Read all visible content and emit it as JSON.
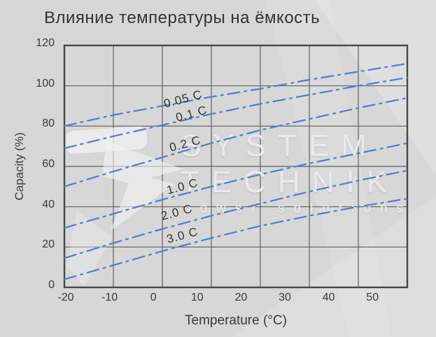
{
  "title": "Влияние температуры на ёмкость",
  "watermark": {
    "line1": "SYSTEM",
    "line2": "TECHNIK",
    "line3": "power solutions"
  },
  "colors": {
    "background": "#d7d7d7",
    "curve_blue": "#4b7fd2",
    "grid": "#606060",
    "border": "#474747",
    "text": "#333333",
    "watermark": "#ececec"
  },
  "chart_data": {
    "type": "line",
    "title": "Влияние температуры на ёмкость",
    "xlabel": "Temperature (°C)",
    "ylabel": "Capacity (%)",
    "xlim": [
      -20,
      50
    ],
    "ylim": [
      0,
      120
    ],
    "grid": true,
    "line_style": "dash-dot",
    "line_color": "#4b7fd2",
    "x": [
      -20,
      -10,
      0,
      10,
      20,
      30,
      40,
      50
    ],
    "x_tick_labels": [
      "-20",
      "-10",
      "0",
      "10",
      "20",
      "30",
      "40",
      "50"
    ],
    "y_ticks": [
      120,
      100,
      80,
      60,
      40,
      20,
      0
    ],
    "y_tick_labels": [
      "120",
      "100",
      "80",
      "60",
      "40",
      "20",
      "0"
    ],
    "legend_position": "inline-curve-labels",
    "series": [
      {
        "name": "0.05 C",
        "values": [
          80,
          85.5,
          90,
          94.5,
          98.5,
          103,
          107,
          111
        ]
      },
      {
        "name": "0.1 C",
        "values": [
          69,
          75,
          80.5,
          86,
          91,
          95.5,
          100,
          104
        ]
      },
      {
        "name": "0.2 C",
        "values": [
          50,
          57.5,
          64.5,
          71.5,
          78,
          83.5,
          89,
          94
        ]
      },
      {
        "name": "1.0 C",
        "values": [
          29.5,
          36.5,
          43.5,
          50,
          56,
          61.5,
          66.5,
          71.5
        ]
      },
      {
        "name": "2.0 C",
        "values": [
          14.5,
          22,
          29,
          35.5,
          41.5,
          47.5,
          53,
          58
        ]
      },
      {
        "name": "3.0 C",
        "values": [
          4,
          11,
          18,
          24.5,
          30.5,
          35.5,
          40,
          44
        ]
      }
    ]
  }
}
